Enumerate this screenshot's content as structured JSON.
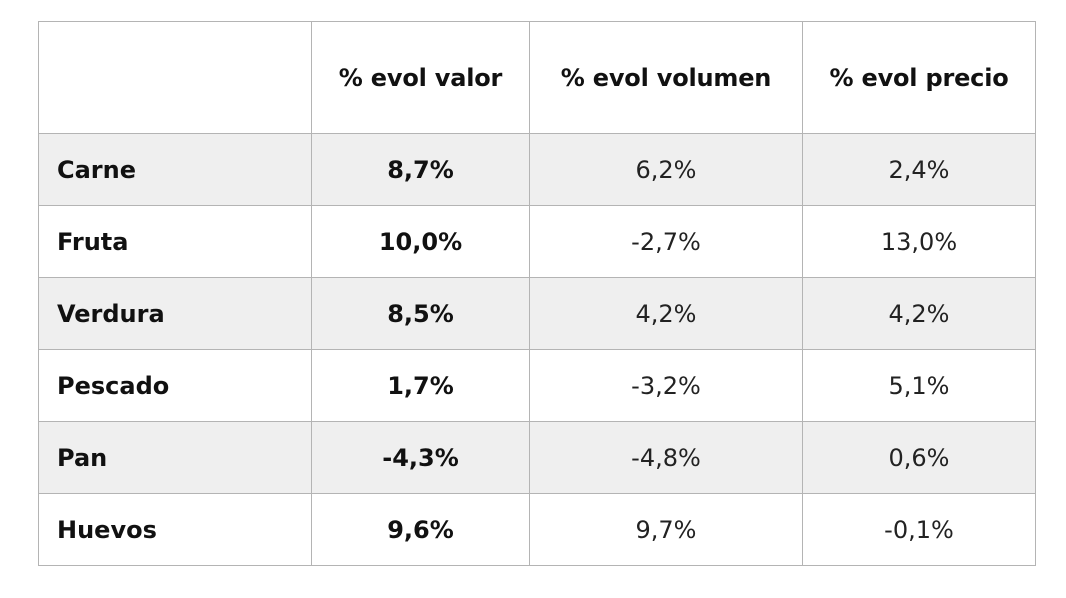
{
  "table": {
    "headers": [
      "",
      "% evol valor",
      "% evol volumen",
      "% evol precio"
    ],
    "rows": [
      {
        "label": "Carne",
        "valor": "8,7%",
        "volumen": "6,2%",
        "precio": "2,4%"
      },
      {
        "label": "Fruta",
        "valor": "10,0%",
        "volumen": "-2,7%",
        "precio": "13,0%"
      },
      {
        "label": "Verdura",
        "valor": "8,5%",
        "volumen": "4,2%",
        "precio": "4,2%"
      },
      {
        "label": "Pescado",
        "valor": "1,7%",
        "volumen": "-3,2%",
        "precio": "5,1%"
      },
      {
        "label": "Pan",
        "valor": "-4,3%",
        "volumen": "-4,8%",
        "precio": "0,6%"
      },
      {
        "label": "Huevos",
        "valor": "9,6%",
        "volumen": "9,7%",
        "precio": "-0,1%"
      }
    ]
  },
  "colors": {
    "border": "#b4b4b4",
    "stripe": "#efefef",
    "text": "#111111"
  }
}
